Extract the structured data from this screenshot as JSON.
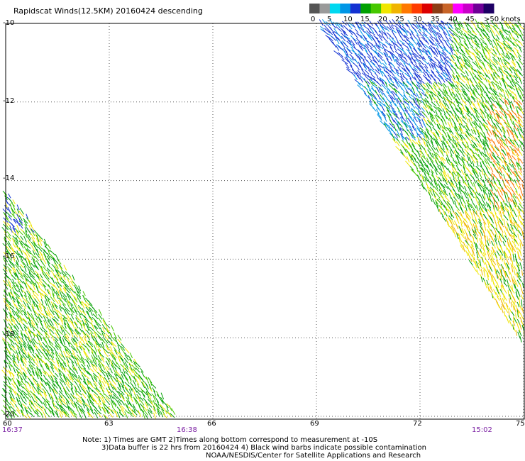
{
  "title": "Rapidscat Winds(12.5KM) 20160424 descending",
  "colorbar": {
    "labels": [
      "0",
      "5",
      "10",
      "15",
      "20",
      "25",
      "30",
      "35",
      "40",
      "45",
      ">50 knots"
    ],
    "colors": [
      "#555555",
      "#9a9a9a",
      "#00d8f0",
      "#0096e6",
      "#1432d2",
      "#00a000",
      "#46c800",
      "#f0e600",
      "#f0b400",
      "#ff7800",
      "#ff3c00",
      "#dc0000",
      "#8c3c14",
      "#c86428",
      "#ff00ff",
      "#c800c8",
      "#6e0096",
      "#1e0064"
    ]
  },
  "axes": {
    "lat_labels": [
      "-10",
      "-12",
      "-14",
      "-16",
      "-18",
      "-20"
    ],
    "lon_labels": [
      "60",
      "63",
      "66",
      "69",
      "72",
      "75"
    ],
    "lat_values": [
      -10,
      -12,
      -14,
      -16,
      -18,
      -20
    ],
    "lon_values": [
      60,
      63,
      66,
      69,
      72,
      75
    ]
  },
  "times": [
    "16:37",
    "16:38",
    "15:02"
  ],
  "notes": [
    "Note: 1) Times are GMT 2)Times along bottom correspond to measurement at -10S",
    "3)Data buffer is 22 hrs from 20160424 4) Black wind barbs indicate possible contamination",
    "NOAA/NESDIS/Center for Satellite Applications and Research"
  ]
}
